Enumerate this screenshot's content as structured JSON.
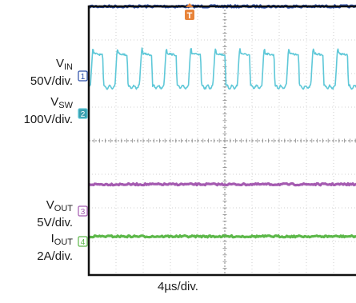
{
  "chart_data": {
    "type": "line",
    "time_scale": "4µs/div.",
    "grid": true,
    "divisions": {
      "x": 10,
      "y": 8
    },
    "channels": [
      {
        "id": "vin",
        "marker": "1",
        "color": "#2a4ea8",
        "label_main": "V",
        "label_sub": "IN",
        "scale": "50V/div.",
        "waveform": "dc",
        "level_div": 4.0
      },
      {
        "id": "vsw",
        "marker": "2",
        "color": "#5fc8d8",
        "label_main": "V",
        "label_sub": "SW",
        "scale": "100V/div.",
        "waveform": "square",
        "high_div": 2.6,
        "low_div": 1.6,
        "period_div": 0.9
      },
      {
        "id": "vout",
        "marker": "3",
        "color": "#a45ab0",
        "label_main": "V",
        "label_sub": "OUT",
        "scale": "5V/div.",
        "waveform": "dc",
        "level_div": -1.3
      },
      {
        "id": "iout",
        "marker": "4",
        "color": "#5db84a",
        "label_main": "I",
        "label_sub": "OUT",
        "scale": "2A/div.",
        "waveform": "dc",
        "level_div": -2.85
      }
    ],
    "trigger_marker": "T"
  }
}
